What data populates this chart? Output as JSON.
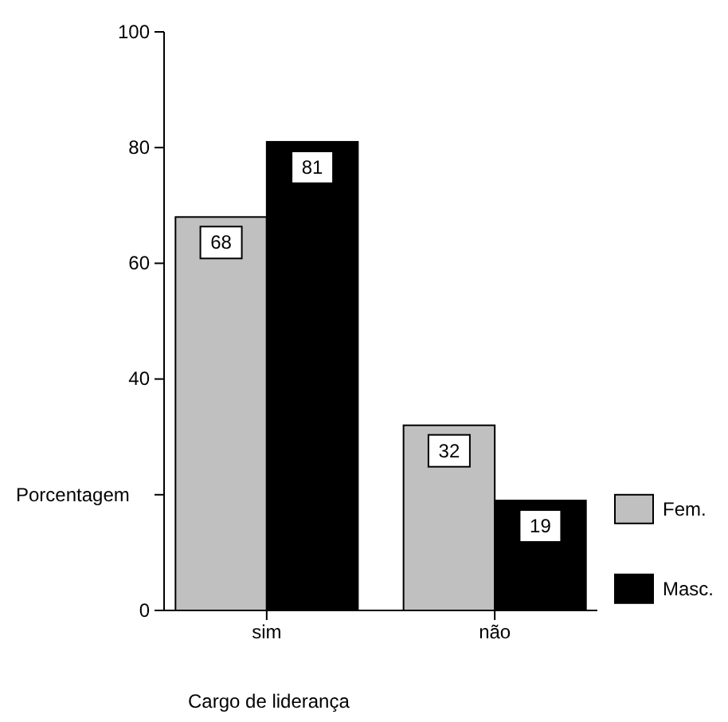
{
  "chart_data": {
    "type": "bar",
    "xlabel": "Cargo de liderança",
    "ylabel": "Porcentagem",
    "categories": [
      "sim",
      "não"
    ],
    "series": [
      {
        "name": "Fem.",
        "color": "#c0c0c0",
        "values": [
          68,
          32
        ]
      },
      {
        "name": "Masc.",
        "color": "#000000",
        "values": [
          81,
          19
        ]
      }
    ],
    "ylim": [
      0,
      100
    ],
    "yticks": [
      0,
      {
        "value": 20,
        "label": null
      },
      40,
      60,
      80,
      100
    ],
    "data_labels": true,
    "legend": "right",
    "grid": false
  }
}
